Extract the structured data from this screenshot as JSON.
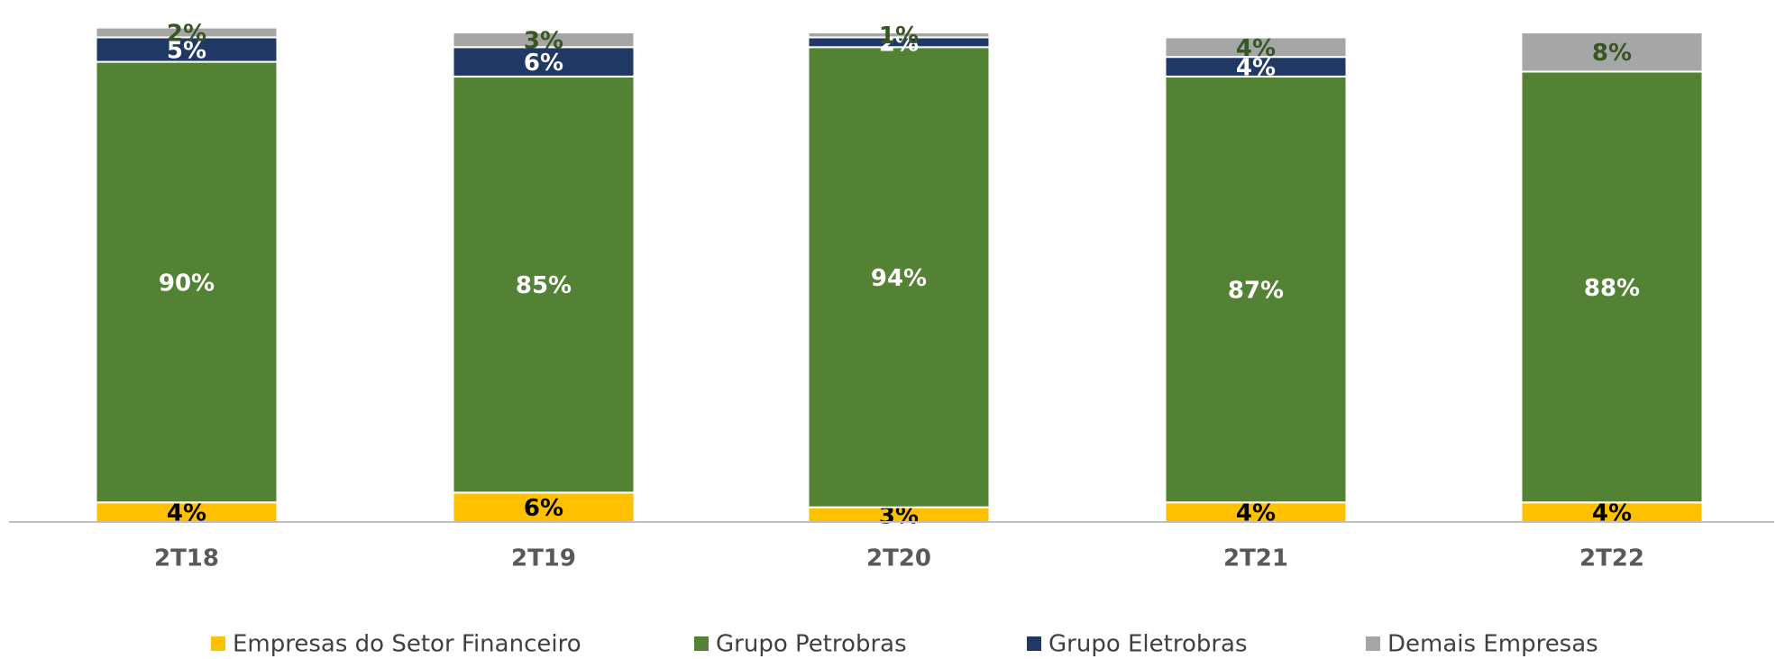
{
  "chart_data": {
    "type": "stacked_bar",
    "categories": [
      "2T18",
      "2T19",
      "2T20",
      "2T21",
      "2T22"
    ],
    "ylim": [
      0,
      100
    ],
    "series": [
      {
        "name": "Empresas do Setor Financeiro",
        "color": "#FFC000",
        "label_color": "#000000",
        "values": [
          4,
          6,
          3,
          4,
          4
        ],
        "value_labels": [
          "4%",
          "6%",
          "3%",
          "4%",
          "4%"
        ]
      },
      {
        "name": "Grupo Petrobras",
        "color": "#548235",
        "label_color": "#FFFFFF",
        "values": [
          90,
          85,
          94,
          87,
          88
        ],
        "value_labels": [
          "90%",
          "85%",
          "94%",
          "87%",
          "88%"
        ]
      },
      {
        "name": "Grupo Eletrobras",
        "color": "#203864",
        "label_color": "#FFFFFF",
        "values": [
          5,
          6,
          2,
          4,
          null
        ],
        "value_labels": [
          "5%",
          "6%",
          "2%",
          "4%",
          null
        ]
      },
      {
        "name": "Demais Empresas",
        "color": "#A6A6A6",
        "label_color": "#375623",
        "values": [
          2,
          3,
          1,
          4,
          8
        ],
        "value_labels": [
          "2%",
          "3%",
          "1%",
          "4%",
          "8%"
        ]
      }
    ],
    "legend": "bottom"
  }
}
